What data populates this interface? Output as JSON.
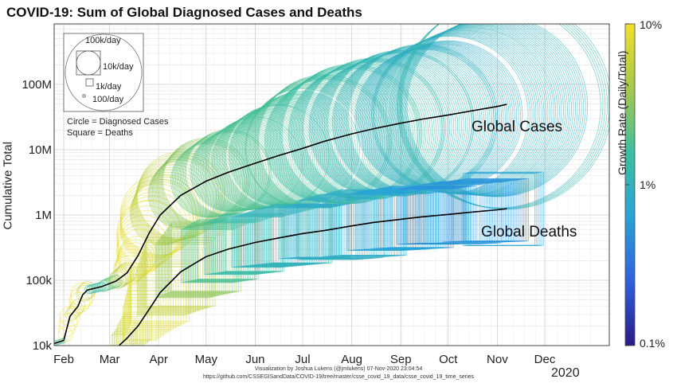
{
  "chart_data": {
    "type": "scatter",
    "title": "COVID-19: Sum of Global Diagnosed Cases and Deaths",
    "ylabel": "Cumulative Total",
    "yscale": "log",
    "ylim": [
      10000,
      1000000000
    ],
    "yticks": [
      {
        "value": 10000,
        "label": "10k"
      },
      {
        "value": 100000,
        "label": "100k"
      },
      {
        "value": 1000000,
        "label": "1M"
      },
      {
        "value": 10000000,
        "label": "10M"
      },
      {
        "value": 100000000,
        "label": "100M"
      }
    ],
    "xticks": [
      "Feb",
      "Mar",
      "Apr",
      "May",
      "Jun",
      "Jul",
      "Aug",
      "Sep",
      "Oct",
      "Nov",
      "Dec"
    ],
    "xyear": "2020",
    "grid": true,
    "series": [
      {
        "name": "Global Cases",
        "marker": "circle",
        "points": [
          {
            "date": "2020-01-22",
            "value": 10000
          },
          {
            "date": "2020-02-01",
            "value": 12000
          },
          {
            "date": "2020-02-05",
            "value": 28000
          },
          {
            "date": "2020-02-10",
            "value": 40000
          },
          {
            "date": "2020-02-13",
            "value": 60000
          },
          {
            "date": "2020-02-16",
            "value": 71000
          },
          {
            "date": "2020-02-25",
            "value": 80000
          },
          {
            "date": "2020-03-05",
            "value": 97000
          },
          {
            "date": "2020-03-12",
            "value": 130000
          },
          {
            "date": "2020-03-19",
            "value": 240000
          },
          {
            "date": "2020-03-26",
            "value": 530000
          },
          {
            "date": "2020-04-02",
            "value": 1000000
          },
          {
            "date": "2020-04-15",
            "value": 2000000
          },
          {
            "date": "2020-05-01",
            "value": 3300000
          },
          {
            "date": "2020-05-15",
            "value": 4500000
          },
          {
            "date": "2020-06-01",
            "value": 6200000
          },
          {
            "date": "2020-06-15",
            "value": 8000000
          },
          {
            "date": "2020-07-01",
            "value": 10500000
          },
          {
            "date": "2020-07-15",
            "value": 13500000
          },
          {
            "date": "2020-08-01",
            "value": 17500000
          },
          {
            "date": "2020-08-15",
            "value": 21000000
          },
          {
            "date": "2020-09-01",
            "value": 25500000
          },
          {
            "date": "2020-09-15",
            "value": 29500000
          },
          {
            "date": "2020-10-01",
            "value": 34000000
          },
          {
            "date": "2020-10-15",
            "value": 39000000
          },
          {
            "date": "2020-11-01",
            "value": 46000000
          },
          {
            "date": "2020-11-07",
            "value": 49500000
          }
        ]
      },
      {
        "name": "Global Deaths",
        "marker": "square",
        "points": [
          {
            "date": "2020-03-07",
            "value": 10000
          },
          {
            "date": "2020-03-12",
            "value": 13000
          },
          {
            "date": "2020-03-19",
            "value": 20000
          },
          {
            "date": "2020-03-26",
            "value": 36000
          },
          {
            "date": "2020-04-02",
            "value": 65000
          },
          {
            "date": "2020-04-15",
            "value": 135000
          },
          {
            "date": "2020-05-01",
            "value": 230000
          },
          {
            "date": "2020-05-15",
            "value": 300000
          },
          {
            "date": "2020-06-01",
            "value": 380000
          },
          {
            "date": "2020-06-15",
            "value": 440000
          },
          {
            "date": "2020-07-01",
            "value": 520000
          },
          {
            "date": "2020-07-15",
            "value": 580000
          },
          {
            "date": "2020-08-01",
            "value": 680000
          },
          {
            "date": "2020-08-15",
            "value": 770000
          },
          {
            "date": "2020-09-01",
            "value": 860000
          },
          {
            "date": "2020-09-15",
            "value": 940000
          },
          {
            "date": "2020-10-01",
            "value": 1020000
          },
          {
            "date": "2020-10-15",
            "value": 1100000
          },
          {
            "date": "2020-11-01",
            "value": 1200000
          },
          {
            "date": "2020-11-07",
            "value": 1250000
          }
        ]
      }
    ],
    "colorbar": {
      "label": "Growth Rate (Daily/Total)",
      "scale": "log",
      "ticks": [
        {
          "value": 0.1,
          "label": "0.1%"
        },
        {
          "value": 1,
          "label": "1%"
        },
        {
          "value": 10,
          "label": "10%"
        }
      ],
      "colors": [
        "#2a1a8a",
        "#2f60e0",
        "#2aa3d8",
        "#3bbfa0",
        "#a8c84a",
        "#f0e02a"
      ]
    },
    "size_legend": {
      "entries": [
        "100k/day",
        "10k/day",
        "1k/day",
        "100/day"
      ],
      "notes": [
        "Circle = Diagnosed Cases",
        "Square = Deaths"
      ]
    }
  },
  "credits": {
    "line1": "Visualization by Joshua Lukens (@jmlukens) 07-Nov-2020 23:04:54",
    "line2": "https://github.com/CSSEGISandData/COVID-19/tree/master/csse_covid_19_data/csse_covid_19_time_series"
  }
}
